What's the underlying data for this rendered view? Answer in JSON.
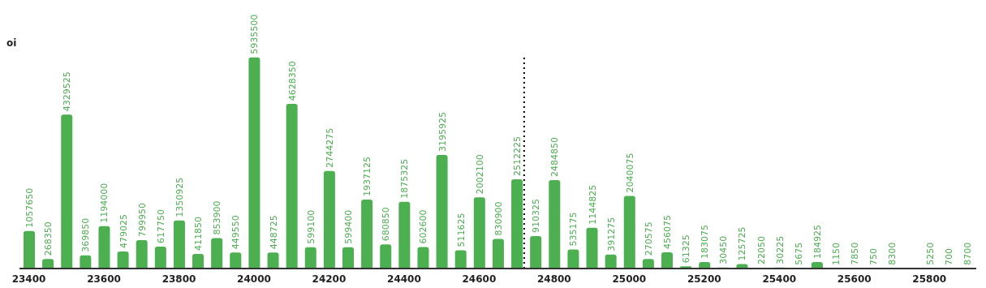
{
  "chart_data": {
    "type": "bar",
    "ylabel": "oi",
    "x": [
      23400,
      23450,
      23500,
      23550,
      23600,
      23650,
      23700,
      23750,
      23800,
      23850,
      23900,
      23950,
      24000,
      24050,
      24100,
      24150,
      24200,
      24250,
      24300,
      24350,
      24400,
      24450,
      24500,
      24550,
      24600,
      24650,
      24700,
      24750,
      24800,
      24850,
      24900,
      24950,
      25000,
      25050,
      25100,
      25150,
      25200,
      25250,
      25300,
      25350,
      25400,
      25450,
      25500,
      25550,
      25600,
      25650,
      25700,
      25750,
      25800,
      25850,
      25900
    ],
    "values": [
      1057650,
      268350,
      4329525,
      369850,
      1194000,
      479025,
      799950,
      617750,
      1350925,
      411850,
      853900,
      449550,
      5935500,
      448725,
      4628350,
      599100,
      2744275,
      599400,
      1937125,
      680850,
      1875325,
      602600,
      3195925,
      511625,
      2002100,
      830900,
      2512225,
      910325,
      2484850,
      535175,
      1144825,
      391275,
      2040075,
      270575,
      456075,
      61325,
      183075,
      30450,
      125725,
      22050,
      30225,
      5675,
      184925,
      1150,
      7850,
      750,
      8300,
      null,
      5250,
      700,
      8700
    ],
    "color": "#4caf50",
    "data_labels": true,
    "xlim": [
      23375,
      25925
    ],
    "xticks": [
      23400,
      23600,
      23800,
      24000,
      24200,
      24400,
      24600,
      24800,
      25000,
      25200,
      25400,
      25600,
      25800
    ],
    "ylim": [
      0,
      6000000
    ],
    "tick_labels": "x",
    "ref_lines": [
      {
        "axis": "x",
        "value": 24720,
        "color": "#000000",
        "line_style": "dotted"
      }
    ]
  }
}
